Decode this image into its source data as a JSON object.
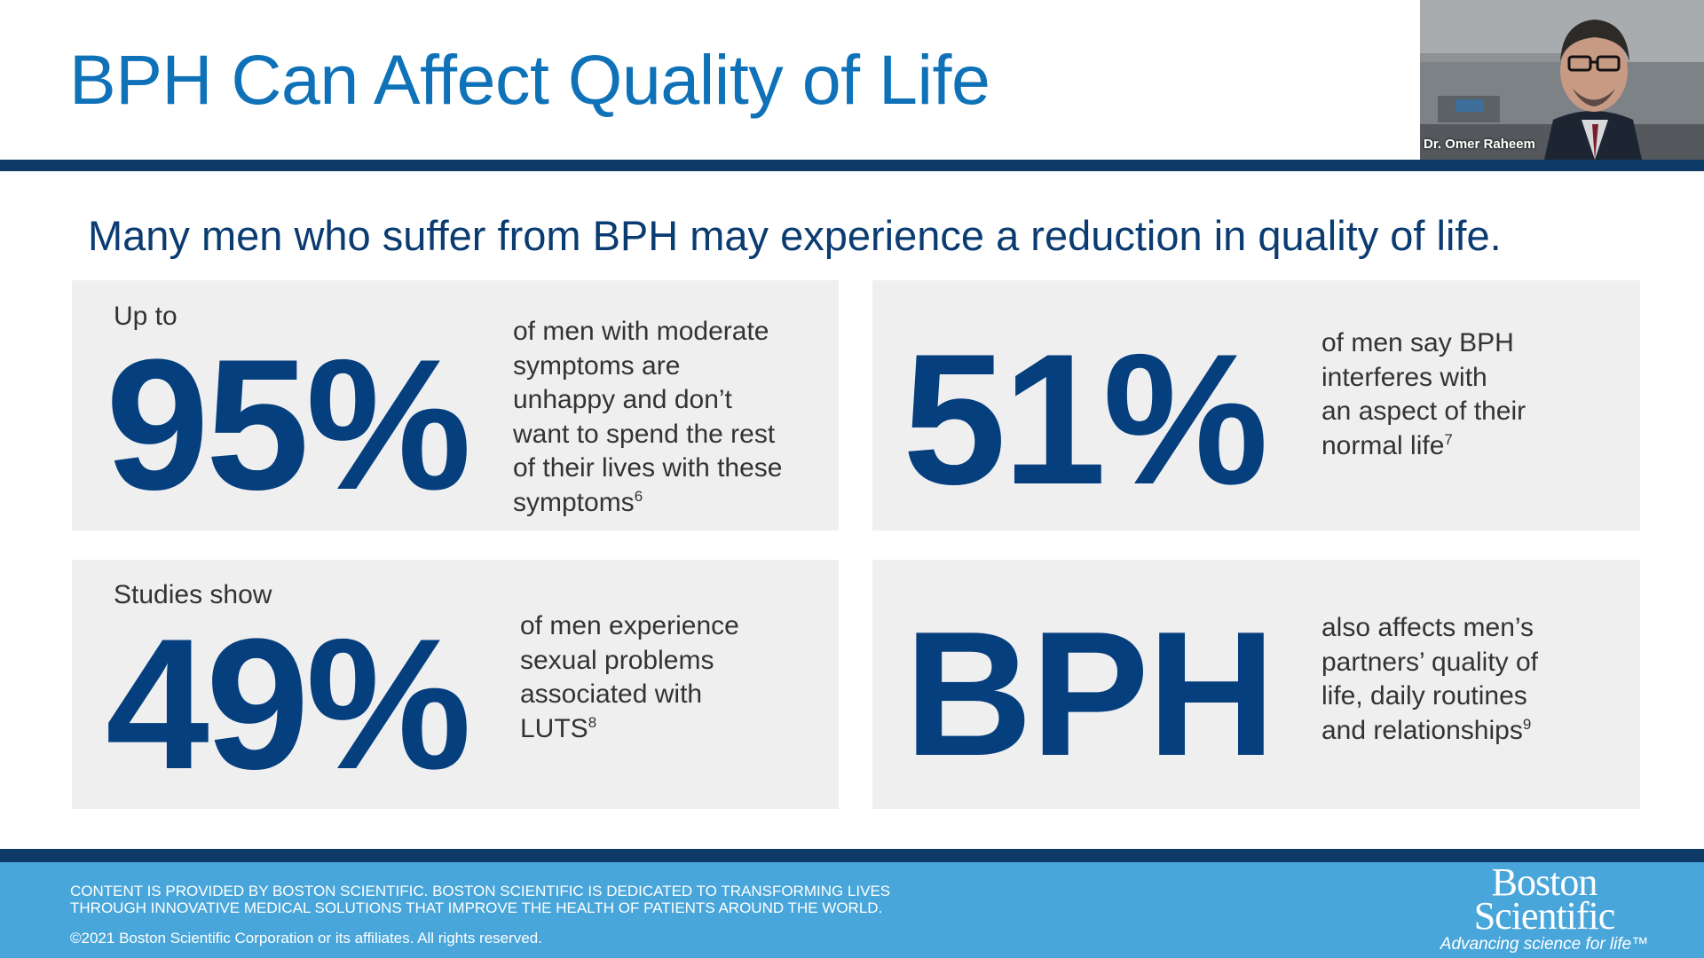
{
  "slide": {
    "title": "BPH Can Affect Quality of Life",
    "subtitle": "Many men who suffer from BPH may experience a reduction in quality of life."
  },
  "cards": [
    {
      "prefix": "Up to",
      "big": "95%",
      "lines": [
        "of men with moderate",
        "symptoms are",
        "unhappy and don’t",
        "want to spend the rest",
        "of their lives with these",
        "symptoms"
      ],
      "ref": "6"
    },
    {
      "prefix": "",
      "big": "51%",
      "lines": [
        "of men say BPH",
        "interferes with",
        "an aspect of their",
        "normal life"
      ],
      "ref": "7"
    },
    {
      "prefix": "Studies show",
      "big": "49%",
      "lines": [
        "of men experience",
        "sexual problems",
        "associated with",
        "LUTS"
      ],
      "ref": "8"
    },
    {
      "prefix": "",
      "big": "BPH",
      "lines": [
        "also affects men’s",
        "partners’ quality of",
        "life, daily routines",
        "and relationships"
      ],
      "ref": "9"
    }
  ],
  "footer": {
    "text_line1": "CONTENT IS PROVIDED BY BOSTON SCIENTIFIC. BOSTON SCIENTIFIC IS DEDICATED TO TRANSFORMING LIVES",
    "text_line2": "THROUGH INNOVATIVE MEDICAL SOLUTIONS THAT IMPROVE THE HEALTH OF PATIENTS AROUND THE WORLD.",
    "copyright": "©2021 Boston Scientific Corporation or its affiliates. All rights reserved.",
    "logo_line1": "Boston",
    "logo_line2": "Scientific",
    "logo_tagline": "Advancing science for life™"
  },
  "video": {
    "participant_name": "Dr. Omer Raheem"
  },
  "colors": {
    "title_blue": "#0f72b8",
    "big_number_blue": "#063f7e",
    "band_navy": "#0d3a66",
    "footer_blue": "#49a6da",
    "card_gray": "#efeff0"
  }
}
